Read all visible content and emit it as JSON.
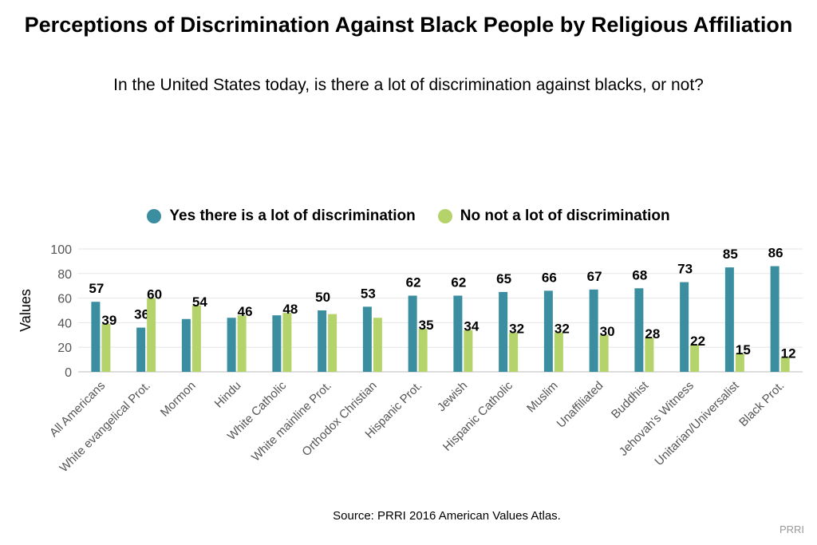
{
  "chart_data": {
    "type": "bar",
    "title": "Perceptions of Discrimination Against Black People by Religious Affiliation",
    "subtitle": "In the United States today, is there a lot of discrimination against blacks, or not?",
    "ylabel": "Values",
    "xlabel": "",
    "ylim": [
      0,
      100
    ],
    "yticks": [
      0,
      20,
      40,
      60,
      80,
      100
    ],
    "grid": true,
    "legend_position": "top-center",
    "categories": [
      "All Americans",
      "White evangelical Prot.",
      "Mormon",
      "Hindu",
      "White Catholic",
      "White mainline Prot.",
      "Orthodox Christian",
      "Hispanic Prot.",
      "Jewish",
      "Hispanic Catholic",
      "Muslim",
      "Unaffiliated",
      "Buddhist",
      "Jehovah's Witness",
      "Unitarian/Universalist",
      "Black Prot."
    ],
    "series": [
      {
        "name": "Yes there is a lot of discrimination",
        "color": "#3a8ea0",
        "values": [
          57,
          36,
          43,
          44,
          46,
          50,
          53,
          62,
          62,
          65,
          66,
          67,
          68,
          73,
          85,
          86
        ],
        "labels": [
          "57",
          "36",
          "",
          "",
          "",
          "50",
          "53",
          "62",
          "62",
          "65",
          "66",
          "67",
          "68",
          "73",
          "85",
          "86"
        ]
      },
      {
        "name": "No not a lot of discrimination",
        "color": "#b5d36b",
        "values": [
          39,
          60,
          54,
          46,
          48,
          47,
          44,
          35,
          34,
          32,
          32,
          30,
          28,
          22,
          15,
          12
        ],
        "labels": [
          "39",
          "60",
          "54",
          "46",
          "48",
          "",
          "",
          "35",
          "34",
          "32",
          "32",
          "30",
          "28",
          "22",
          "15",
          "12"
        ]
      }
    ]
  },
  "footer": {
    "source": "Source: PRRI 2016 American Values Atlas.",
    "brand": "PRRI"
  }
}
